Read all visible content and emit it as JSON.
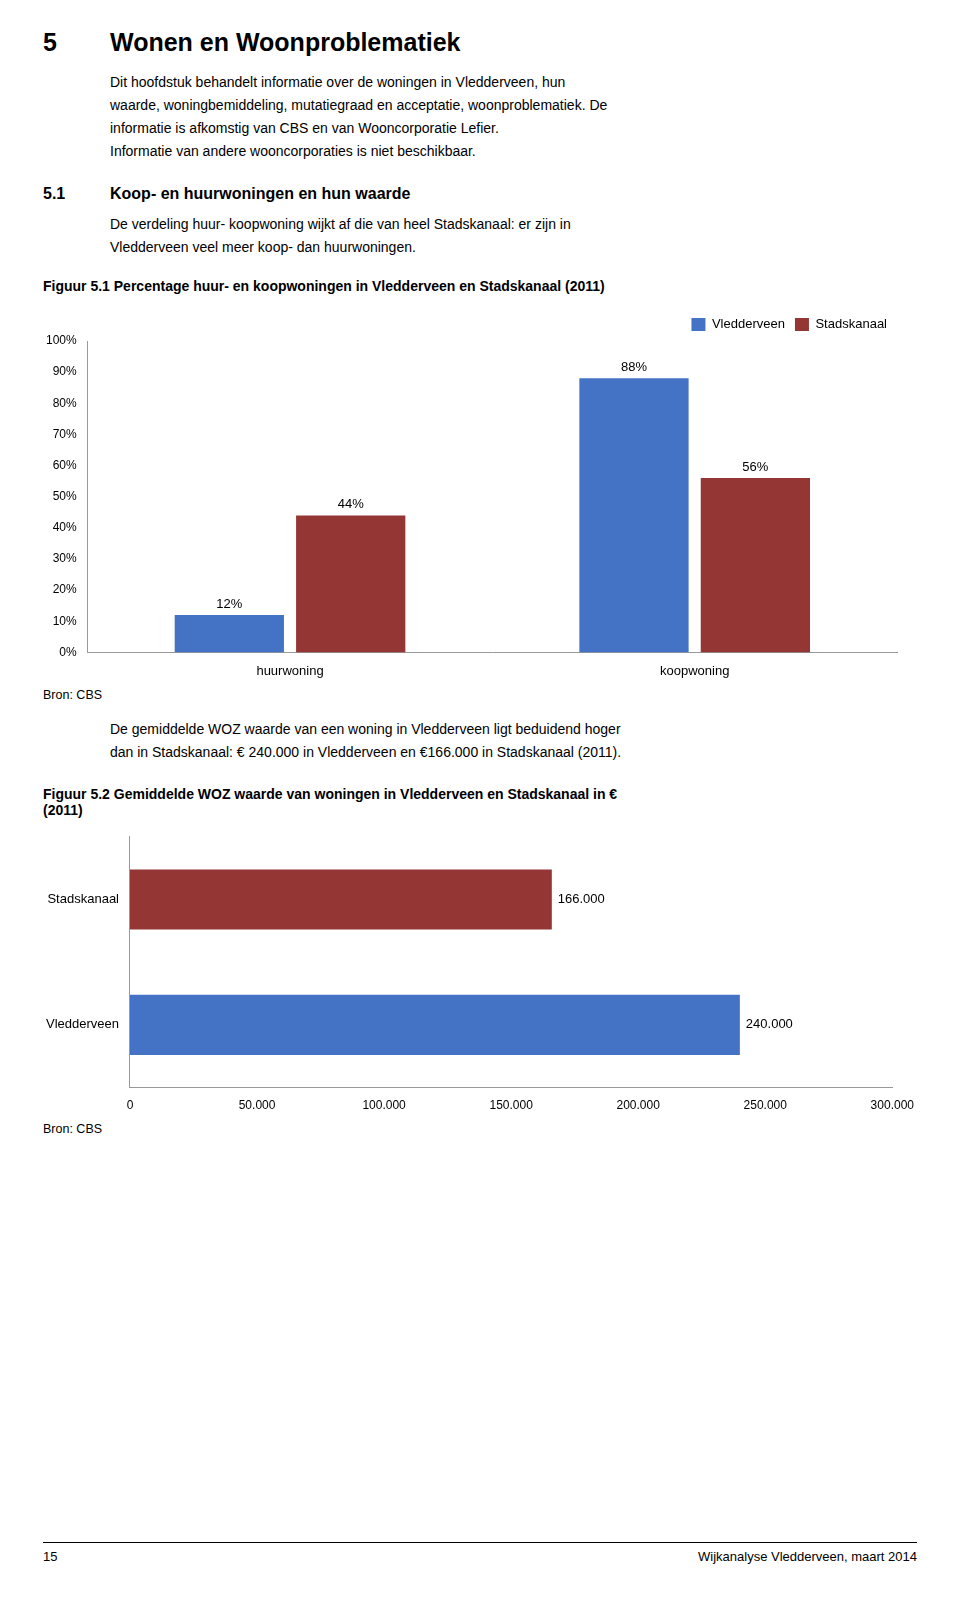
{
  "annotations": [
    "5",
    "Wonen en Woonproblematiek",
    "Dit hoofdstuk behandelt informatie over de woningen in Vledderveen, hun\nwaarde, woningbemiddeling, mutatiegraad en acceptatie, woonproblematiek. De\ninformatie is afkomstig van CBS en van Wooncorporatie Lefier.\nInformatie van andere wooncorporaties is niet beschikbaar.",
    "5.1",
    "Koop- en huurwoningen en hun waarde",
    "De verdeling huur- koopwoning wijkt af die van heel Stadskanaal: er zijn in\nVledderveen veel meer koop- dan huurwoningen.",
    "15",
    "Wijkanalyse Vledderveen, maart 2014"
  ],
  "chart_data": [
    {
      "type": "bar",
      "title": [
        "Figuur 5.1 Percentage huur- en koopwoningen in Vledderveen en Stadskanaal (2011)"
      ],
      "categories": [
        "huurwoning",
        "koopwoning"
      ],
      "series": [
        {
          "name": "Vledderveen",
          "color": "#4472C4",
          "values": [
            12,
            88
          ],
          "value_labels": [
            "12%",
            "88%"
          ]
        },
        {
          "name": "Stadskanaal",
          "color": "#943634",
          "values": [
            44,
            56
          ],
          "value_labels": [
            "44%",
            "56%"
          ]
        }
      ],
      "ylim": [
        0,
        100
      ],
      "yticks": [
        {
          "value": 0,
          "label": "0%"
        },
        {
          "value": 10,
          "label": "10%"
        },
        {
          "value": 20,
          "label": "20%"
        },
        {
          "value": 30,
          "label": "30%"
        },
        {
          "value": 40,
          "label": "40%"
        },
        {
          "value": 50,
          "label": "50%"
        },
        {
          "value": 60,
          "label": "60%"
        },
        {
          "value": 70,
          "label": "70%"
        },
        {
          "value": 80,
          "label": "80%"
        },
        {
          "value": 90,
          "label": "90%"
        },
        {
          "value": 100,
          "label": "100%"
        }
      ],
      "grid": false,
      "legend": "upper right",
      "data_labels": true,
      "annotations": [
        "Bron: CBS",
        "De gemiddelde WOZ waarde van een woning in Vledderveen ligt beduidend hoger\ndan in Stadskanaal: € 240.000 in Vledderveen en €166.000 in Stadskanaal (2011)."
      ]
    },
    {
      "type": "bar",
      "orientation": "horizontal",
      "title": [
        "Figuur 5.2 Gemiddelde WOZ waarde van woningen in Vledderveen en Stadskanaal in €",
        "(2011)"
      ],
      "categories": [
        "Vledderveen",
        "Stadskanaal"
      ],
      "values": [
        240000,
        166000
      ],
      "value_labels": [
        "240.000",
        "166.000"
      ],
      "colors": [
        "#4472C4",
        "#943634"
      ],
      "xlim": [
        0,
        300000
      ],
      "xticks": [
        0,
        {
          "value": 50000,
          "label": "50.000"
        },
        {
          "value": 100000,
          "label": "100.000"
        },
        {
          "value": 150000,
          "label": "150.000"
        },
        {
          "value": 200000,
          "label": "200.000"
        },
        {
          "value": 250000,
          "label": "250.000"
        },
        {
          "value": 300000,
          "label": "300.000"
        }
      ],
      "grid": false,
      "data_labels": true,
      "annotations": [
        "Bron: CBS"
      ]
    }
  ]
}
